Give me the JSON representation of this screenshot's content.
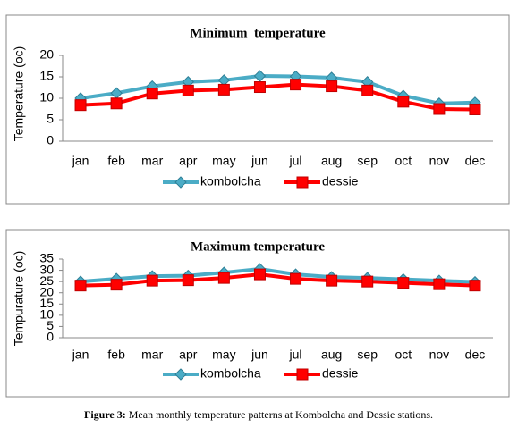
{
  "chart_data": [
    {
      "type": "line",
      "title": "Minimum  temperature",
      "y_label": "Temperature (oc)",
      "categories": [
        "jan",
        "feb",
        "mar",
        "apr",
        "may",
        "jun",
        "jul",
        "aug",
        "sep",
        "oct",
        "nov",
        "dec"
      ],
      "series": [
        {
          "name": "kombolcha",
          "color": "#4bacc6",
          "marker": "diamond",
          "values": [
            10,
            11.2,
            12.8,
            13.8,
            14.2,
            15.2,
            15.1,
            14.8,
            13.8,
            10.6,
            8.8,
            9.0
          ]
        },
        {
          "name": "dessie",
          "color": "#ff0000",
          "marker": "square",
          "values": [
            8.4,
            8.8,
            11.1,
            11.8,
            12,
            12.6,
            13.2,
            12.8,
            11.8,
            9.2,
            7.5,
            7.4
          ]
        }
      ],
      "ylim": [
        0,
        20
      ],
      "yticks": [
        0,
        5,
        10,
        15,
        20
      ],
      "grid": false,
      "legend": "bottom"
    },
    {
      "type": "line",
      "title": "Maximum temperature",
      "y_label": "Tempurature (oc)",
      "categories": [
        "jan",
        "feb",
        "mar",
        "apr",
        "may",
        "jun",
        "jul",
        "aug",
        "sep",
        "oct",
        "nov",
        "dec"
      ],
      "series": [
        {
          "name": "kombolcha",
          "color": "#4bacc6",
          "marker": "diamond",
          "values": [
            25,
            26.2,
            27.4,
            27.6,
            29,
            30.6,
            28.2,
            27,
            26.6,
            26,
            25.4,
            24.8
          ]
        },
        {
          "name": "dessie",
          "color": "#ff0000",
          "marker": "square",
          "values": [
            23.2,
            23.6,
            25.4,
            25.6,
            26.6,
            28.2,
            26.2,
            25.4,
            25,
            24.4,
            23.8,
            23.2
          ]
        }
      ],
      "ylim": [
        0,
        35
      ],
      "yticks": [
        0,
        5,
        10,
        15,
        20,
        25,
        30,
        35
      ],
      "grid": false,
      "legend": "bottom"
    }
  ],
  "caption": {
    "label": "Figure 3:",
    "text": "Mean monthly temperature patterns at Kombolcha and Dessie stations."
  }
}
